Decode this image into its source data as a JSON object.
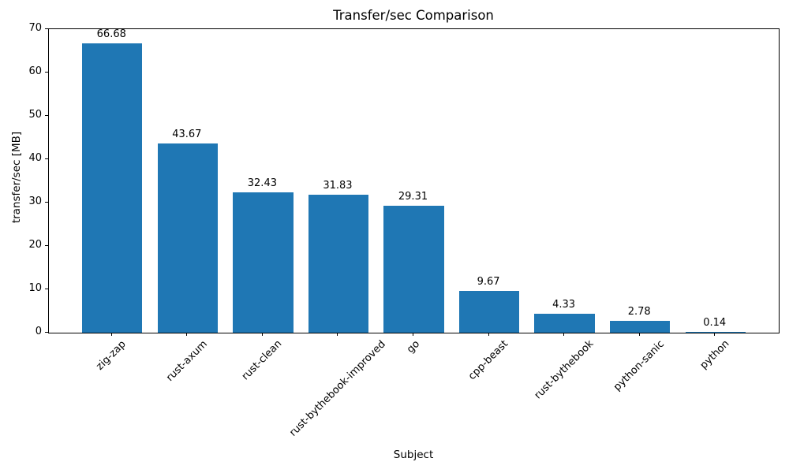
{
  "chart_data": {
    "type": "bar",
    "title": "Transfer/sec Comparison",
    "xlabel": "Subject",
    "ylabel": "transfer/sec [MB]",
    "categories": [
      "zig-zap",
      "rust-axum",
      "rust-clean",
      "rust-bythebook-improved",
      "go",
      "cpp-beast",
      "rust-bythebook",
      "python-sanic",
      "python"
    ],
    "values": [
      66.68,
      43.67,
      32.43,
      31.83,
      29.31,
      9.67,
      4.33,
      2.78,
      0.14
    ],
    "value_labels": [
      "66.68",
      "43.67",
      "32.43",
      "31.83",
      "29.31",
      "9.67",
      "4.33",
      "2.78",
      "0.14"
    ],
    "ylim": [
      0,
      70
    ],
    "yticks": [
      0,
      10,
      20,
      30,
      40,
      50,
      60,
      70
    ],
    "bar_color": "#1f77b4",
    "axis_color": "#000000",
    "grid": false,
    "legend": null
  }
}
